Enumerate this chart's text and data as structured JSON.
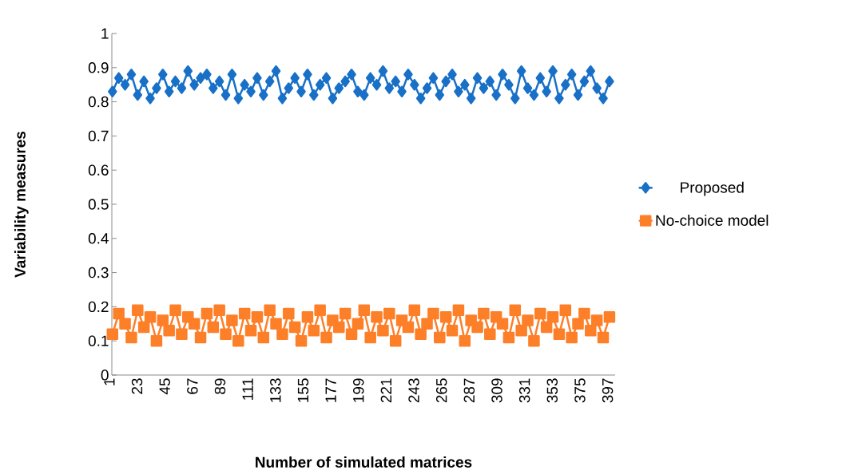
{
  "chart_data": {
    "type": "line",
    "xlabel": "Number of simulated matrices",
    "ylabel": "Variability measures",
    "xlim": [
      0.5,
      400.5
    ],
    "xticks": [
      1,
      23,
      45,
      67,
      89,
      111,
      133,
      155,
      177,
      199,
      221,
      243,
      265,
      287,
      309,
      331,
      353,
      375,
      397
    ],
    "ylim": [
      0,
      1
    ],
    "yticks": [
      0,
      0.1,
      0.2,
      0.3,
      0.4,
      0.5,
      0.6,
      0.7,
      0.8,
      0.9,
      1
    ],
    "x": [
      1,
      6,
      11,
      16,
      21,
      26,
      31,
      36,
      41,
      46,
      51,
      56,
      61,
      66,
      71,
      76,
      81,
      86,
      91,
      96,
      101,
      106,
      111,
      116,
      121,
      126,
      131,
      136,
      141,
      146,
      151,
      156,
      161,
      166,
      171,
      176,
      181,
      186,
      191,
      196,
      201,
      206,
      211,
      216,
      221,
      226,
      231,
      236,
      241,
      246,
      251,
      256,
      261,
      266,
      271,
      276,
      281,
      286,
      291,
      296,
      301,
      306,
      311,
      316,
      321,
      326,
      331,
      336,
      341,
      346,
      351,
      356,
      361,
      366,
      371,
      376,
      381,
      386,
      391,
      396
    ],
    "legend": "right",
    "grid": false,
    "line_style": "solid",
    "series": [
      {
        "name": "Proposed",
        "color": "#1870c7",
        "marker": "diamond",
        "values": [
          0.83,
          0.87,
          0.85,
          0.88,
          0.82,
          0.86,
          0.81,
          0.84,
          0.88,
          0.83,
          0.86,
          0.84,
          0.89,
          0.85,
          0.87,
          0.88,
          0.84,
          0.86,
          0.82,
          0.88,
          0.81,
          0.85,
          0.83,
          0.87,
          0.82,
          0.86,
          0.89,
          0.81,
          0.84,
          0.87,
          0.83,
          0.88,
          0.82,
          0.85,
          0.87,
          0.81,
          0.84,
          0.86,
          0.88,
          0.83,
          0.82,
          0.87,
          0.85,
          0.89,
          0.84,
          0.86,
          0.83,
          0.88,
          0.85,
          0.81,
          0.84,
          0.87,
          0.82,
          0.86,
          0.88,
          0.83,
          0.85,
          0.81,
          0.87,
          0.84,
          0.86,
          0.82,
          0.88,
          0.85,
          0.81,
          0.89,
          0.84,
          0.82,
          0.87,
          0.83,
          0.89,
          0.81,
          0.85,
          0.88,
          0.82,
          0.86,
          0.89,
          0.84,
          0.81,
          0.86
        ]
      },
      {
        "name": "No-choice model",
        "color": "#fd7f28",
        "marker": "square",
        "values": [
          0.12,
          0.18,
          0.15,
          0.11,
          0.19,
          0.14,
          0.17,
          0.1,
          0.16,
          0.13,
          0.19,
          0.12,
          0.17,
          0.15,
          0.11,
          0.18,
          0.14,
          0.19,
          0.12,
          0.16,
          0.1,
          0.18,
          0.13,
          0.17,
          0.11,
          0.19,
          0.15,
          0.12,
          0.18,
          0.14,
          0.1,
          0.17,
          0.13,
          0.19,
          0.11,
          0.16,
          0.14,
          0.18,
          0.12,
          0.15,
          0.19,
          0.11,
          0.17,
          0.13,
          0.18,
          0.1,
          0.16,
          0.14,
          0.19,
          0.12,
          0.15,
          0.18,
          0.11,
          0.17,
          0.13,
          0.19,
          0.1,
          0.16,
          0.14,
          0.18,
          0.12,
          0.17,
          0.15,
          0.11,
          0.19,
          0.13,
          0.16,
          0.1,
          0.18,
          0.14,
          0.17,
          0.12,
          0.19,
          0.11,
          0.15,
          0.18,
          0.13,
          0.16,
          0.11,
          0.17
        ]
      }
    ]
  }
}
